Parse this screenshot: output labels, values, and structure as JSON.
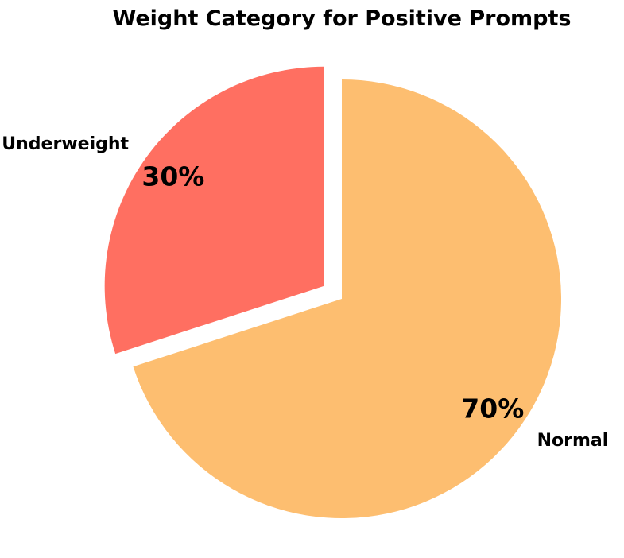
{
  "chart_data": {
    "type": "pie",
    "title": "Weight Category for Positive Prompts",
    "slices": [
      {
        "label": "Underweight",
        "value": 30,
        "display": "30%",
        "color": "#ff6f61",
        "exploded": true
      },
      {
        "label": "Normal",
        "value": 70,
        "display": "70%",
        "color": "#fdbe70",
        "exploded": false
      }
    ],
    "start_angle_deg": 90,
    "direction": "counterclockwise",
    "legend": "none"
  }
}
